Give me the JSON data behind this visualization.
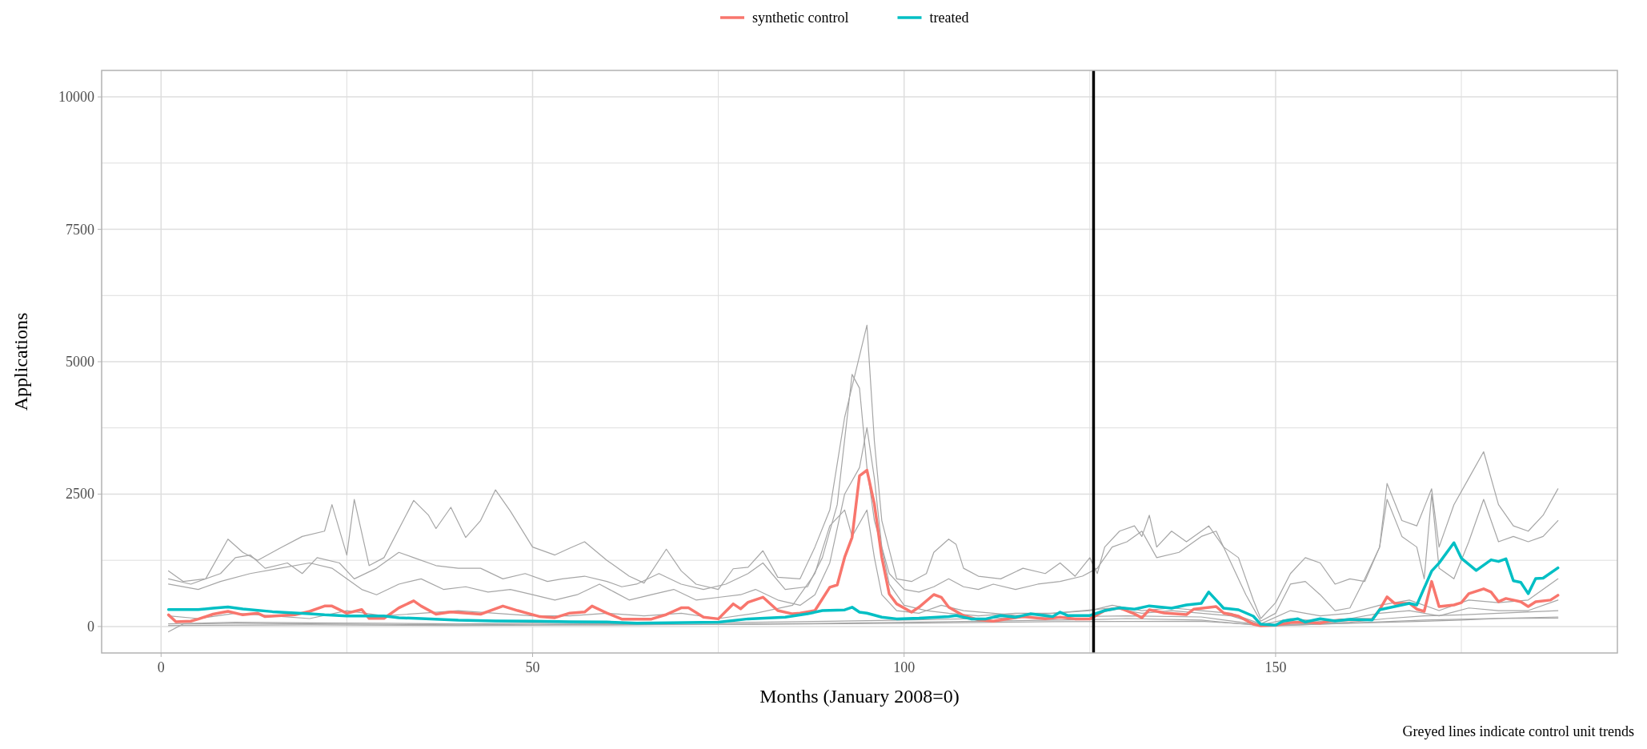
{
  "chart_data": {
    "type": "line",
    "xlabel": "Months (January 2008=0)",
    "ylabel": "Applications",
    "annotations": [
      "Greyed lines indicate control unit trends"
    ],
    "xlim": [
      -8,
      196
    ],
    "ylim": [
      -500,
      10500
    ],
    "xticks": [
      0,
      {
        "value": 25,
        "label": null
      },
      50,
      {
        "value": 75,
        "label": null
      },
      100,
      {
        "value": 125,
        "label": null
      },
      150,
      {
        "value": 175,
        "label": null
      }
    ],
    "yticks": [
      0,
      {
        "value": 1250,
        "label": null
      },
      2500,
      {
        "value": 3750,
        "label": null
      },
      5000,
      {
        "value": 6250,
        "label": null
      },
      7500,
      {
        "value": 8750,
        "label": null
      },
      10000
    ],
    "grid": true,
    "legend": "top",
    "line_style": "solid",
    "ref_lines": [
      {
        "axis": "x",
        "value": 125.5,
        "color": "#000000"
      }
    ],
    "series": [
      {
        "color": "#a6a6a6",
        "x": [
          1,
          3,
          6,
          9,
          11,
          13,
          16,
          19,
          22,
          23,
          25,
          26,
          28,
          30,
          34,
          36,
          37,
          39,
          41,
          43,
          45,
          47,
          50,
          53,
          55,
          57,
          60,
          63,
          65,
          68,
          70,
          72,
          75,
          77,
          79,
          81,
          83,
          86,
          88,
          90,
          92,
          95,
          96,
          97,
          99,
          101,
          103,
          104,
          106,
          107,
          108,
          110,
          113,
          116,
          119,
          121,
          123,
          125,
          126,
          127,
          129,
          131,
          132,
          133,
          134,
          136,
          138,
          141,
          143,
          145,
          147,
          148,
          150,
          152,
          154,
          156,
          158,
          160,
          162,
          164,
          165,
          167,
          169,
          171,
          172,
          174,
          176,
          178,
          180,
          182,
          184,
          186,
          188
        ],
        "values": [
          1050,
          850,
          900,
          1650,
          1400,
          1250,
          1480,
          1700,
          1800,
          2300,
          1350,
          2400,
          1150,
          1300,
          2380,
          2100,
          1850,
          2250,
          1680,
          2000,
          2580,
          2180,
          1500,
          1350,
          1480,
          1600,
          1250,
          950,
          820,
          1460,
          1050,
          800,
          700,
          1090,
          1120,
          1430,
          930,
          900,
          1500,
          2200,
          3950,
          5690,
          3500,
          2000,
          900,
          850,
          1000,
          1400,
          1650,
          1550,
          1100,
          950,
          900,
          1100,
          1000,
          1200,
          950,
          1300,
          1000,
          1500,
          1800,
          1900,
          1700,
          2100,
          1500,
          1800,
          1600,
          1900,
          1500,
          1300,
          500,
          150,
          450,
          1000,
          1300,
          1200,
          800,
          900,
          850,
          1500,
          2700,
          2000,
          1900,
          2600,
          1500,
          2300,
          2800,
          3300,
          2300,
          1900,
          1800,
          2100,
          2600
        ]
      },
      {
        "color": "#a6a6a6",
        "x": [
          1,
          4,
          8,
          10,
          12,
          14,
          17,
          19,
          21,
          24,
          26,
          29,
          32,
          34,
          37,
          40,
          43,
          46,
          49,
          52,
          54,
          57,
          60,
          62,
          64,
          67,
          70,
          73,
          76,
          79,
          81,
          84,
          87,
          89,
          91,
          93,
          94,
          95,
          96,
          98,
          100,
          102,
          104,
          106,
          108,
          110,
          112,
          115,
          118,
          121,
          124,
          126,
          128,
          130,
          132,
          134,
          137,
          140,
          142,
          144,
          146,
          148,
          150,
          152,
          154,
          156,
          158,
          160,
          162,
          164,
          165,
          167,
          169,
          170,
          171,
          172,
          174,
          176,
          178,
          180,
          182,
          184,
          186,
          188
        ],
        "values": [
          900,
          800,
          1000,
          1300,
          1350,
          1100,
          1200,
          1000,
          1300,
          1200,
          900,
          1100,
          1400,
          1300,
          1150,
          1100,
          1100,
          900,
          1000,
          850,
          900,
          950,
          850,
          750,
          800,
          1000,
          800,
          700,
          800,
          1000,
          1200,
          700,
          750,
          1300,
          2300,
          4760,
          4500,
          3000,
          2000,
          1000,
          700,
          650,
          750,
          900,
          750,
          700,
          800,
          700,
          800,
          850,
          950,
          1100,
          1500,
          1600,
          1800,
          1300,
          1400,
          1700,
          1800,
          1200,
          600,
          100,
          250,
          800,
          850,
          600,
          300,
          350,
          900,
          1500,
          2400,
          1700,
          1500,
          900,
          2500,
          1100,
          900,
          1600,
          2400,
          1600,
          1700,
          1600,
          1700,
          2000
        ]
      },
      {
        "color": "#a6a6a6",
        "x": [
          1,
          5,
          8,
          12,
          16,
          20,
          23,
          25,
          27,
          29,
          32,
          35,
          38,
          41,
          44,
          47,
          50,
          53,
          56,
          59,
          61,
          63,
          66,
          69,
          72,
          75,
          78,
          80,
          83,
          86,
          88,
          90,
          92,
          94,
          95,
          96,
          97,
          98,
          100,
          103,
          106,
          110,
          115,
          120,
          125,
          128,
          132,
          136,
          140,
          144,
          148,
          152,
          156,
          160,
          164,
          168,
          172,
          176,
          180,
          184,
          188
        ],
        "values": [
          800,
          700,
          850,
          1000,
          1100,
          1200,
          1100,
          900,
          700,
          600,
          800,
          900,
          700,
          750,
          650,
          700,
          600,
          500,
          600,
          800,
          650,
          500,
          600,
          700,
          500,
          550,
          600,
          700,
          500,
          400,
          600,
          1200,
          2500,
          3000,
          3755,
          2800,
          1500,
          800,
          400,
          300,
          250,
          200,
          250,
          250,
          300,
          400,
          300,
          350,
          300,
          250,
          50,
          300,
          200,
          250,
          400,
          500,
          300,
          500,
          450,
          500,
          900
        ]
      },
      {
        "color": "#a6a6a6",
        "x": [
          1,
          5,
          10,
          15,
          20,
          25,
          30,
          35,
          40,
          45,
          50,
          55,
          60,
          65,
          70,
          75,
          80,
          85,
          88,
          90,
          92,
          93,
          95,
          96,
          97,
          99,
          102,
          105,
          108,
          112,
          116,
          120,
          124,
          128,
          132,
          136,
          140,
          144,
          148,
          152,
          156,
          160,
          164,
          168,
          172,
          176,
          180,
          184,
          188
        ],
        "values": [
          200,
          150,
          250,
          200,
          150,
          300,
          200,
          250,
          300,
          250,
          200,
          200,
          250,
          200,
          250,
          150,
          250,
          400,
          1000,
          1900,
          2200,
          1700,
          2200,
          1300,
          600,
          300,
          250,
          400,
          300,
          250,
          200,
          250,
          300,
          350,
          250,
          300,
          250,
          200,
          30,
          150,
          100,
          150,
          250,
          300,
          200,
          350,
          300,
          300,
          500
        ]
      },
      {
        "color": "#a6a6a6",
        "x": [
          1,
          3,
          10,
          20,
          30,
          40,
          50,
          60,
          70,
          80,
          90,
          100,
          110,
          120,
          125,
          130,
          140,
          147,
          150,
          160,
          170,
          175,
          180,
          188
        ],
        "values": [
          -100,
          50,
          60,
          50,
          40,
          30,
          40,
          30,
          40,
          50,
          60,
          80,
          100,
          120,
          130,
          150,
          120,
          30,
          20,
          60,
          100,
          120,
          150,
          160
        ]
      },
      {
        "color": "#a6a6a6",
        "x": [
          1,
          10,
          20,
          30,
          40,
          50,
          60,
          70,
          80,
          90,
          100,
          110,
          120,
          130,
          140,
          147,
          150,
          160,
          165,
          170,
          175,
          180,
          188
        ],
        "values": [
          50,
          80,
          70,
          60,
          50,
          60,
          50,
          70,
          80,
          100,
          120,
          150,
          180,
          200,
          180,
          50,
          30,
          80,
          150,
          200,
          220,
          250,
          300
        ]
      },
      {
        "color": "#a6a6a6",
        "x": [
          1,
          20,
          40,
          60,
          80,
          100,
          120,
          140,
          150,
          170,
          188
        ],
        "values": [
          20,
          30,
          20,
          30,
          40,
          60,
          90,
          100,
          10,
          120,
          180
        ]
      },
      {
        "name": "synthetic control",
        "color": "#f8766d",
        "x": [
          1,
          2,
          4,
          5,
          7,
          9,
          11,
          13,
          14,
          18,
          20,
          22,
          23,
          25,
          27,
          28,
          30,
          32,
          34,
          35,
          37,
          39,
          43,
          46,
          48,
          51,
          53,
          55,
          57,
          58,
          60,
          62,
          66,
          68,
          70,
          71,
          73,
          75,
          77,
          78,
          79,
          81,
          83,
          85,
          86,
          88,
          90,
          91,
          92,
          93,
          94,
          95,
          96,
          97,
          98,
          99,
          101,
          102,
          104,
          105,
          106,
          108,
          110,
          112,
          114,
          116,
          119,
          121,
          123,
          125,
          127,
          129,
          131,
          132,
          133,
          135,
          138,
          139,
          142,
          143,
          145,
          147,
          148,
          150,
          152,
          154,
          156,
          157,
          159,
          163,
          164,
          165,
          166,
          168,
          169,
          170,
          171,
          172,
          174,
          175,
          176,
          178,
          179,
          180,
          181,
          183,
          184,
          185,
          187,
          188
        ],
        "values": [
          220,
          90,
          100,
          140,
          233,
          286,
          220,
          250,
          186,
          220,
          286,
          386,
          386,
          250,
          320,
          153,
          153,
          352,
          485,
          386,
          233,
          273,
          233,
          386,
          300,
          186,
          166,
          253,
          273,
          386,
          253,
          140,
          140,
          226,
          352,
          352,
          176,
          144,
          427,
          333,
          458,
          553,
          301,
          239,
          251,
          301,
          741,
          785,
          1306,
          1683,
          2845,
          2952,
          2311,
          1306,
          615,
          427,
          270,
          364,
          603,
          553,
          364,
          207,
          126,
          100,
          144,
          188,
          144,
          176,
          144,
          144,
          301,
          352,
          239,
          164,
          316,
          255,
          225,
          328,
          377,
          255,
          195,
          43,
          12,
          24,
          73,
          85,
          61,
          100,
          122,
          134,
          316,
          559,
          438,
          438,
          328,
          286,
          851,
          377,
          407,
          450,
          620,
          711,
          650,
          468,
          529,
          468,
          377,
          468,
          499,
          590
        ]
      },
      {
        "name": "treated",
        "color": "#00bfc4",
        "x": [
          1,
          5,
          7,
          9,
          11,
          15,
          20,
          22,
          25,
          30,
          32,
          35,
          40,
          45,
          50,
          55,
          60,
          64,
          75,
          79,
          84,
          87,
          89,
          92,
          93,
          94,
          95,
          97,
          99,
          102,
          106,
          107,
          109,
          111,
          113,
          115,
          117,
          120,
          121,
          122,
          125,
          127,
          129,
          131,
          133,
          136,
          138,
          140,
          141,
          143,
          145,
          147,
          148,
          150,
          151,
          153,
          154,
          156,
          158,
          160,
          163,
          164,
          166,
          168,
          169,
          171,
          172,
          174,
          175,
          177,
          179,
          180,
          181,
          182,
          183,
          184,
          185,
          186,
          188
        ],
        "values": [
          320,
          320,
          345,
          370,
          330,
          280,
          240,
          220,
          200,
          200,
          165,
          150,
          120,
          106,
          100,
          90,
          85,
          63,
          82,
          144,
          176,
          239,
          301,
          314,
          364,
          270,
          251,
          176,
          144,
          157,
          188,
          207,
          144,
          144,
          207,
          176,
          239,
          188,
          270,
          207,
          207,
          301,
          352,
          328,
          389,
          347,
          407,
          438,
          651,
          347,
          316,
          195,
          43,
          24,
          100,
          146,
          85,
          146,
          103,
          134,
          122,
          316,
          377,
          438,
          407,
          1046,
          1198,
          1581,
          1289,
          1058,
          1259,
          1228,
          1277,
          863,
          833,
          620,
          906,
          912,
          1107
        ]
      }
    ]
  }
}
